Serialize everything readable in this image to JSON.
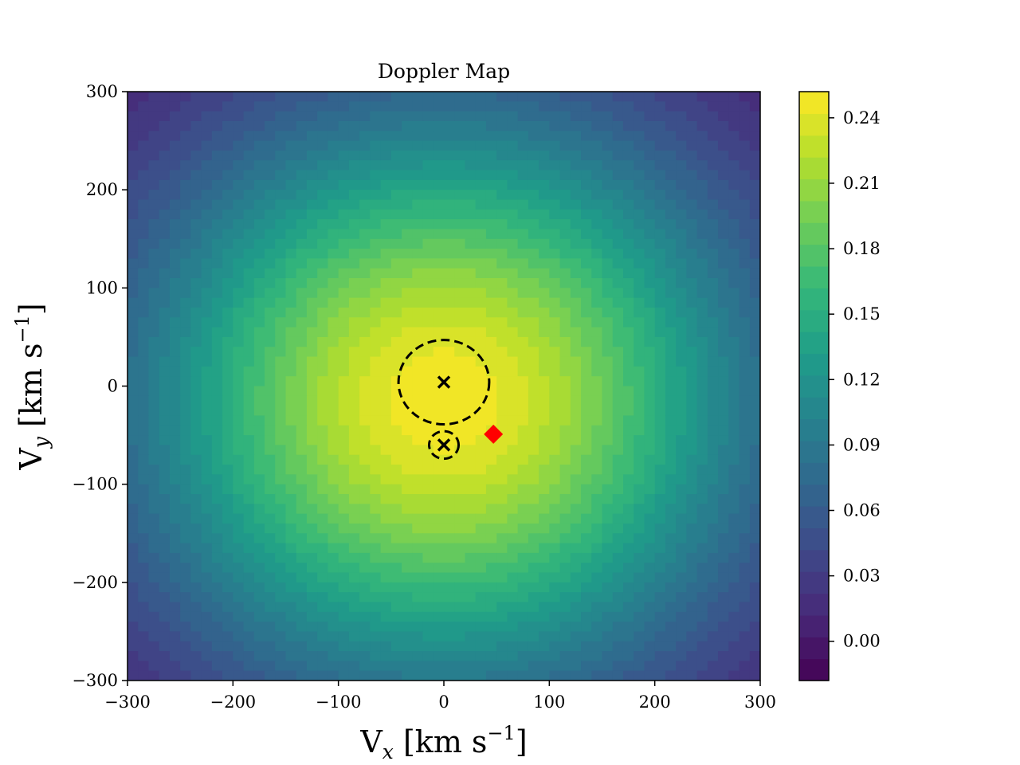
{
  "chart_data": {
    "type": "heatmap",
    "subtype": "filled-contour",
    "title": "Doppler Map",
    "xlabel": {
      "main": "V",
      "sub": "x",
      "unit_pre": " [km s",
      "sup": "−1",
      "unit_post": "]"
    },
    "ylabel": {
      "main": "V",
      "sub": "y",
      "unit_pre": " [km s",
      "sup": "−1",
      "unit_post": "]"
    },
    "xlim": [
      -300,
      300
    ],
    "ylim": [
      -300,
      300
    ],
    "xticks": [
      -300,
      -200,
      -100,
      0,
      100,
      200,
      300
    ],
    "yticks": [
      -300,
      -200,
      -100,
      0,
      100,
      200,
      300
    ],
    "xtick_labels": [
      "−300",
      "−200",
      "−100",
      "0",
      "100",
      "200",
      "300"
    ],
    "ytick_labels": [
      "−300",
      "−200",
      "−100",
      "0",
      "100",
      "200",
      "300"
    ],
    "colormap": "viridis",
    "colorbar": {
      "range": [
        -0.018,
        0.252
      ],
      "ticks": [
        0.0,
        0.03,
        0.06,
        0.09,
        0.12,
        0.15,
        0.18,
        0.21,
        0.24
      ],
      "tick_labels": [
        "0.00",
        "0.03",
        "0.06",
        "0.09",
        "0.12",
        "0.15",
        "0.18",
        "0.21",
        "0.24"
      ],
      "levels": 27
    },
    "intensity_model": {
      "peak": 0.25,
      "center": [
        0,
        -15
      ],
      "sigma": 210,
      "corner_min": -0.015
    },
    "markers": [
      {
        "name": "primary-center",
        "symbol": "x",
        "x": 0,
        "y": 4,
        "color": "#000000"
      },
      {
        "name": "secondary-center",
        "symbol": "x",
        "x": 0,
        "y": -60,
        "color": "#000000"
      },
      {
        "name": "red-diamond",
        "symbol": "diamond",
        "x": 47,
        "y": -49,
        "color": "#ff0000"
      }
    ],
    "roche_lobes": [
      {
        "name": "primary-lobe",
        "style": "dashed",
        "center": [
          0,
          4
        ],
        "radius": 43
      },
      {
        "name": "secondary-lobe",
        "style": "dashed",
        "center": [
          0,
          -60
        ],
        "radius": 14
      }
    ]
  }
}
